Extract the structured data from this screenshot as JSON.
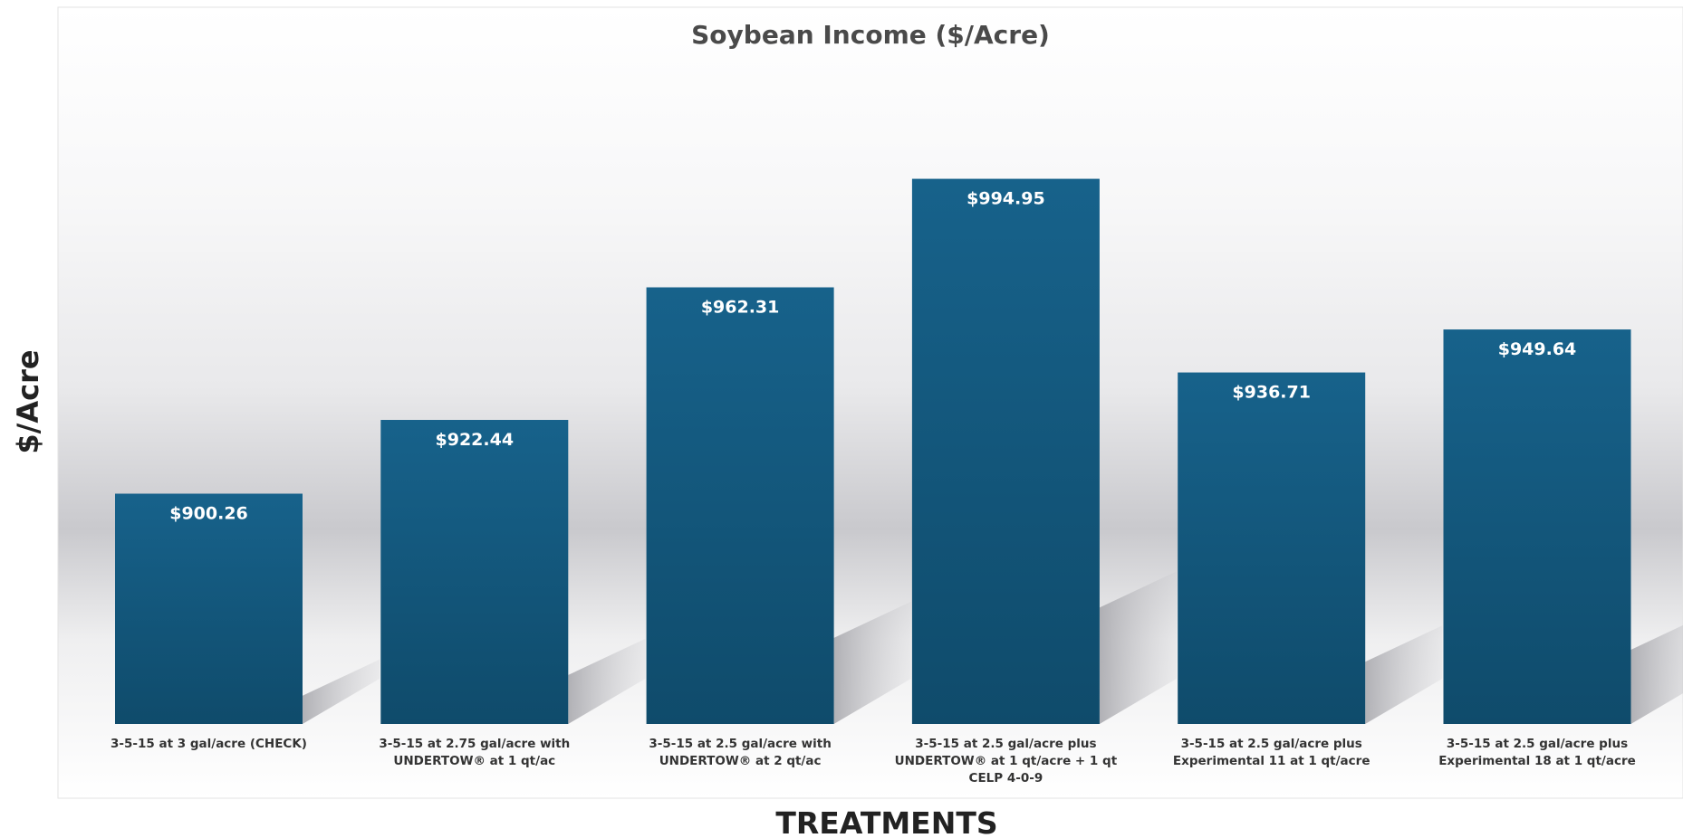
{
  "chart_data": {
    "type": "bar",
    "title": "Soybean Income ($/Acre)",
    "xlabel": "TREATMENTS",
    "ylabel": "$/Acre",
    "categories": [
      "3-5-15 at 3 gal/acre (CHECK)",
      "3-5-15 at 2.75 gal/acre with UNDERTOW® at 1 qt/ac",
      "3-5-15 at 2.5 gal/acre with UNDERTOW® at 2 qt/ac",
      "3-5-15 at 2.5 gal/acre plus UNDERTOW® at 1 qt/acre + 1 qt CELP 4-0-9",
      "3-5-15 at 2.5 gal/acre plus Experimental 11 at 1 qt/acre",
      "3-5-15 at 2.5 gal/acre plus Experimental 18 at 1 qt/acre"
    ],
    "category_lines": [
      [
        "3-5-15 at 3 gal/acre (CHECK)"
      ],
      [
        "3-5-15 at 2.75 gal/acre with",
        "UNDERTOW® at 1 qt/ac"
      ],
      [
        "3-5-15 at 2.5 gal/acre with",
        "UNDERTOW® at 2 qt/ac"
      ],
      [
        "3-5-15 at 2.5 gal/acre plus",
        "UNDERTOW® at 1 qt/acre + 1 qt",
        "CELP 4-0-9"
      ],
      [
        "3-5-15 at 2.5 gal/acre plus",
        "Experimental 11 at 1 qt/acre"
      ],
      [
        "3-5-15 at 2.5 gal/acre plus",
        "Experimental 18 at 1 qt/acre"
      ]
    ],
    "values": [
      900.26,
      922.44,
      962.31,
      994.95,
      936.71,
      949.64
    ],
    "value_labels": [
      "$900.26",
      "$922.44",
      "$962.31",
      "$994.95",
      "$936.71",
      "$949.64"
    ],
    "ylim": [
      831,
      1003
    ],
    "grid": false,
    "legend": "none",
    "colors": {
      "bar_top": "#17618a",
      "bar_bottom": "#0f4c6d",
      "value_label": "#ffffff",
      "title": "#4a4a4a",
      "axis_label": "#222222",
      "shadow": "#b9b9bd"
    }
  }
}
